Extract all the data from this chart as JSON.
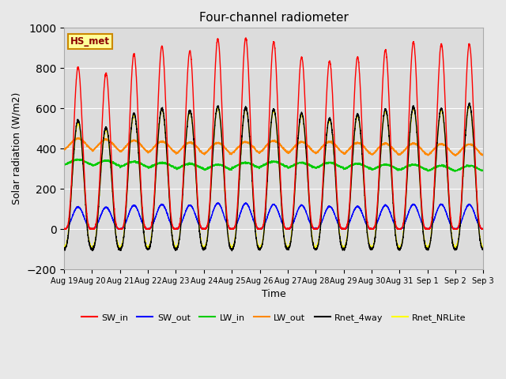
{
  "title": "Four-channel radiometer",
  "ylabel": "Solar radiation (W/m2)",
  "xlabel": "Time",
  "ylim": [
    -200,
    1000
  ],
  "fig_bg_color": "#e8e8e8",
  "plot_bg_color": "#dcdcdc",
  "station_label": "HS_met",
  "x_tick_labels": [
    "Aug 19",
    "Aug 20",
    "Aug 21",
    "Aug 22",
    "Aug 23",
    "Aug 24",
    "Aug 25",
    "Aug 26",
    "Aug 27",
    "Aug 28",
    "Aug 29",
    "Aug 30",
    "Aug 31",
    "Sep 1",
    "Sep 2",
    "Sep 3"
  ],
  "series": {
    "SW_in": {
      "color": "#ff0000",
      "lw": 1.0
    },
    "SW_out": {
      "color": "#0000ff",
      "lw": 1.0
    },
    "LW_in": {
      "color": "#00cc00",
      "lw": 1.0
    },
    "LW_out": {
      "color": "#ff8800",
      "lw": 1.0
    },
    "Rnet_4way": {
      "color": "#000000",
      "lw": 1.0
    },
    "Rnet_NRLite": {
      "color": "#ffff00",
      "lw": 1.0
    }
  },
  "n_days": 15,
  "pts_per_day": 288,
  "SW_in_peaks": [
    805,
    775,
    870,
    910,
    885,
    945,
    950,
    930,
    855,
    835,
    855,
    890,
    930,
    920,
    920
  ],
  "SW_out_peaks": [
    110,
    108,
    118,
    122,
    118,
    128,
    128,
    122,
    118,
    112,
    112,
    118,
    122,
    122,
    122
  ],
  "LW_in_base": [
    320,
    315,
    310,
    305,
    300,
    295,
    305,
    310,
    305,
    305,
    300,
    295,
    295,
    290,
    290
  ],
  "LW_out_base": [
    395,
    390,
    385,
    380,
    375,
    373,
    378,
    383,
    378,
    378,
    373,
    370,
    370,
    367,
    367
  ],
  "Rnet_4way_peaks": [
    540,
    505,
    575,
    600,
    590,
    610,
    605,
    595,
    575,
    550,
    570,
    595,
    608,
    600,
    620
  ],
  "Rnet_NRLite_peaks": [
    530,
    495,
    568,
    595,
    583,
    605,
    600,
    588,
    568,
    543,
    563,
    588,
    600,
    593,
    613
  ],
  "Rnet_night": -100,
  "LW_in_day_bump": 25,
  "LW_out_day_bump": 55
}
